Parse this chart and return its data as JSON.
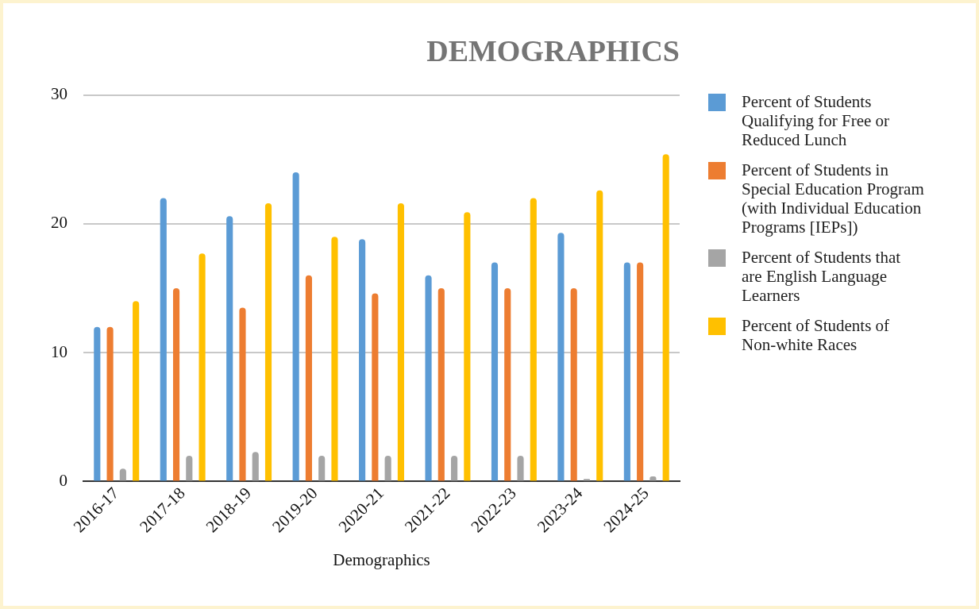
{
  "chart_data": {
    "type": "bar",
    "title": "DEMOGRAPHICS",
    "xlabel": "Demographics",
    "categories": [
      "2016-17",
      "2017-18",
      "2018-19",
      "2019-20",
      "2020-21",
      "2021-22",
      "2022-23",
      "2023-24",
      "2024-25"
    ],
    "series": [
      {
        "name": "Percent of Students Qualifying for Free or Reduced Lunch",
        "color": "#5b9bd5",
        "values": [
          12,
          22,
          20.6,
          24,
          18.8,
          16,
          17,
          19.3,
          17
        ]
      },
      {
        "name": "Percent of Students in Special Education Program (with Individual Education Programs [IEPs])",
        "color": "#ed7d31",
        "values": [
          12,
          15,
          13.5,
          16,
          14.6,
          15,
          15,
          15,
          17
        ]
      },
      {
        "name": "Percent of Students that are English Language Learners",
        "color": "#a5a5a5",
        "values": [
          1,
          2,
          2.3,
          2,
          2,
          2,
          2,
          0.2,
          0.4
        ]
      },
      {
        "name": "Percent of Students of Non-white Races",
        "color": "#ffc000",
        "values": [
          14,
          17.7,
          21.6,
          19,
          21.6,
          20.9,
          22,
          22.6,
          25.4
        ]
      }
    ],
    "ylim": [
      0,
      30
    ],
    "yticks": [
      0,
      10,
      20,
      30
    ],
    "grid": "y",
    "legend": "right"
  }
}
